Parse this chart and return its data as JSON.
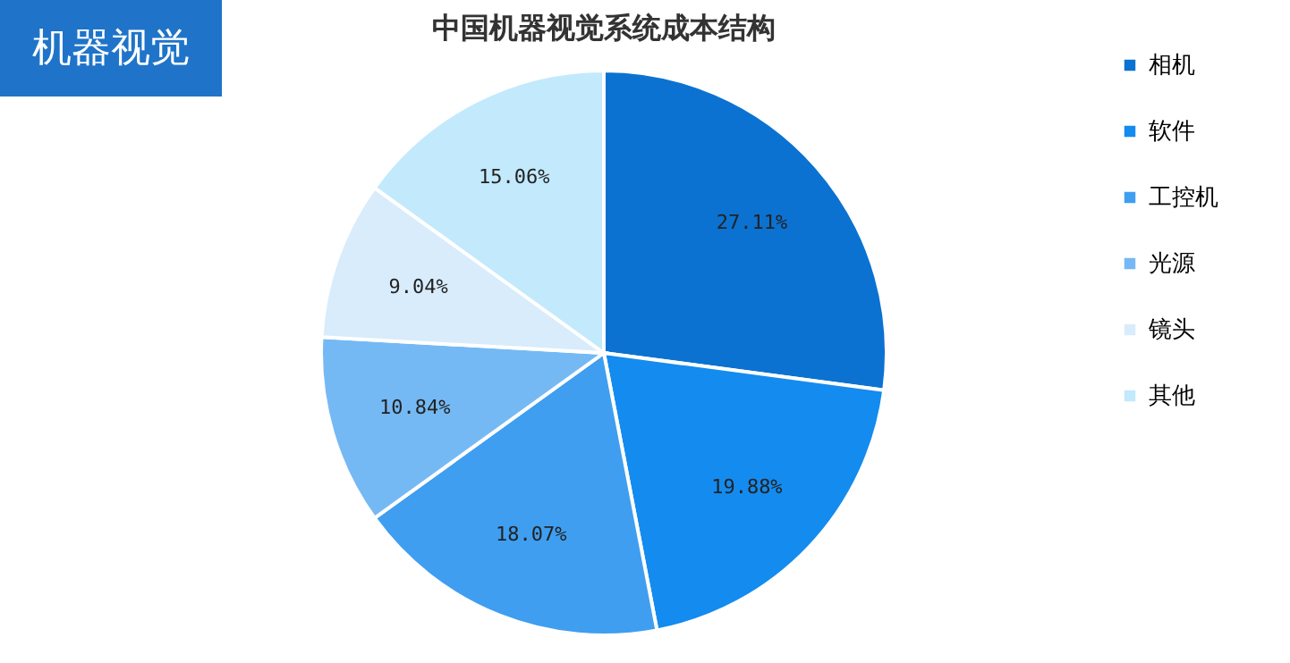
{
  "chart_data": {
    "type": "pie",
    "title": "中国机器视觉系统成本结构",
    "annotations": [
      "机器视觉"
    ],
    "categories": [
      "相机",
      "软件",
      "工控机",
      "光源",
      "镜头",
      "其他"
    ],
    "values": [
      27.11,
      19.88,
      18.07,
      10.84,
      9.04,
      15.06
    ],
    "value_labels": [
      "27.11%",
      "19.88%",
      "18.07%",
      "10.84%",
      "9.04%",
      "15.06%"
    ],
    "colors": [
      "#0b72d1",
      "#148bef",
      "#3f9ef0",
      "#75b9f4",
      "#d8ecfb",
      "#c3e9fc"
    ],
    "legend": "right"
  }
}
